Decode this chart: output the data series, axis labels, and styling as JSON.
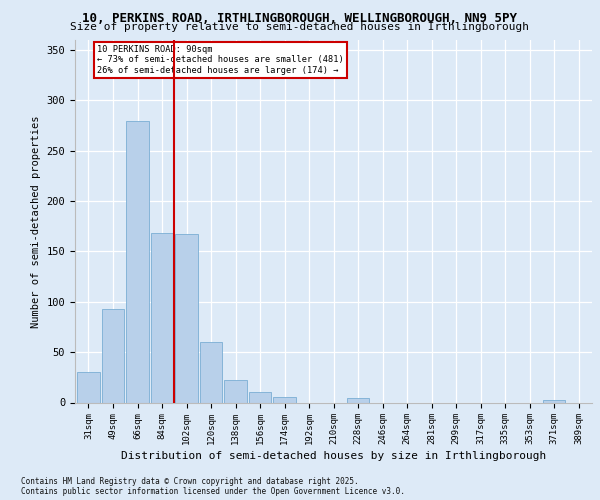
{
  "title1": "10, PERKINS ROAD, IRTHLINGBOROUGH, WELLINGBOROUGH, NN9 5PY",
  "title2": "Size of property relative to semi-detached houses in Irthlingborough",
  "xlabel": "Distribution of semi-detached houses by size in Irthlingborough",
  "ylabel": "Number of semi-detached properties",
  "categories": [
    "31sqm",
    "49sqm",
    "66sqm",
    "84sqm",
    "102sqm",
    "120sqm",
    "138sqm",
    "156sqm",
    "174sqm",
    "192sqm",
    "210sqm",
    "228sqm",
    "246sqm",
    "264sqm",
    "281sqm",
    "299sqm",
    "317sqm",
    "335sqm",
    "353sqm",
    "371sqm",
    "389sqm"
  ],
  "values": [
    30,
    93,
    280,
    168,
    167,
    60,
    22,
    10,
    5,
    0,
    0,
    4,
    0,
    0,
    0,
    0,
    0,
    0,
    0,
    2,
    0
  ],
  "bar_color": "#b8d0ea",
  "bar_edge_color": "#7aaed4",
  "vline_color": "#cc0000",
  "vline_x": 3.5,
  "annotation_title": "10 PERKINS ROAD: 90sqm",
  "annotation_line1": "← 73% of semi-detached houses are smaller (481)",
  "annotation_line2": "26% of semi-detached houses are larger (174) →",
  "ylim": [
    0,
    360
  ],
  "yticks": [
    0,
    50,
    100,
    150,
    200,
    250,
    300,
    350
  ],
  "background_color": "#ddeaf7",
  "footer": "Contains HM Land Registry data © Crown copyright and database right 2025.\nContains public sector information licensed under the Open Government Licence v3.0."
}
